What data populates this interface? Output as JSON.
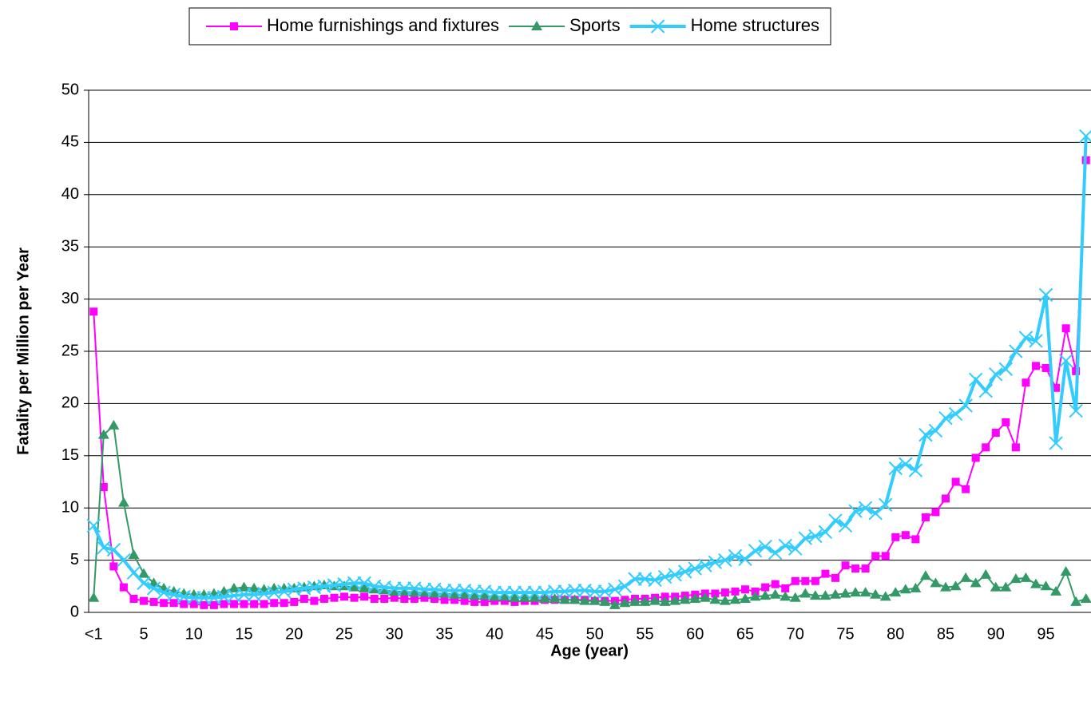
{
  "chart_data": {
    "type": "line",
    "x_label": "Age (year)",
    "y_label": "Fatality per Million per Year",
    "categories": [
      "<1",
      null,
      null,
      null,
      null,
      "5",
      null,
      null,
      null,
      null,
      "10",
      null,
      null,
      null,
      null,
      "15",
      null,
      null,
      null,
      null,
      "20",
      null,
      null,
      null,
      null,
      "25",
      null,
      null,
      null,
      null,
      "30",
      null,
      null,
      null,
      null,
      "35",
      null,
      null,
      null,
      null,
      "40",
      null,
      null,
      null,
      null,
      "45",
      null,
      null,
      null,
      null,
      "50",
      null,
      null,
      null,
      null,
      "55",
      null,
      null,
      null,
      null,
      "60",
      null,
      null,
      null,
      null,
      "65",
      null,
      null,
      null,
      null,
      "70",
      null,
      null,
      null,
      null,
      "75",
      null,
      null,
      null,
      null,
      "80",
      null,
      null,
      null,
      null,
      "85",
      null,
      null,
      null,
      null,
      "90",
      null,
      null,
      null,
      null,
      "95",
      null,
      null,
      null,
      null
    ],
    "series": [
      {
        "name": "Home furnishings and fixtures",
        "color": "#ff00ff",
        "marker": "square",
        "values": [
          28.8,
          12,
          4.4,
          2.4,
          1.3,
          1.1,
          1.0,
          0.9,
          0.9,
          0.8,
          0.8,
          0.7,
          0.7,
          0.8,
          0.8,
          0.8,
          0.8,
          0.8,
          0.9,
          0.9,
          1.0,
          1.3,
          1.1,
          1.3,
          1.4,
          1.5,
          1.4,
          1.5,
          1.3,
          1.3,
          1.4,
          1.3,
          1.3,
          1.4,
          1.3,
          1.2,
          1.2,
          1.1,
          1.0,
          1.0,
          1.1,
          1.1,
          1.0,
          1.1,
          1.1,
          1.2,
          1.2,
          1.2,
          1.2,
          1.2,
          1.1,
          1.1,
          1.1,
          1.2,
          1.3,
          1.3,
          1.4,
          1.5,
          1.5,
          1.6,
          1.7,
          1.8,
          1.8,
          1.9,
          2.0,
          2.2,
          2.0,
          2.4,
          2.7,
          2.3,
          3.0,
          3.0,
          3.0,
          3.7,
          3.3,
          4.5,
          4.2,
          4.2,
          5.4,
          5.4,
          7.2,
          7.4,
          7.0,
          9.1,
          9.6,
          10.9,
          12.5,
          11.8,
          14.8,
          15.8,
          17.2,
          18.2,
          15.8,
          22.0,
          23.6,
          23.4,
          21.5,
          27.2,
          23.1,
          43.3
        ]
      },
      {
        "name": "Sports",
        "color": "#339966",
        "marker": "triangle",
        "values": [
          1.4,
          17.0,
          17.9,
          10.5,
          5.5,
          3.7,
          2.8,
          2.3,
          2.0,
          1.8,
          1.7,
          1.7,
          1.8,
          2.0,
          2.3,
          2.4,
          2.3,
          2.2,
          2.3,
          2.3,
          2.3,
          2.4,
          2.5,
          2.6,
          2.5,
          2.5,
          2.4,
          2.3,
          2.2,
          2.1,
          2.0,
          2.0,
          1.9,
          1.9,
          1.8,
          1.8,
          1.7,
          1.7,
          1.6,
          1.6,
          1.5,
          1.5,
          1.4,
          1.4,
          1.4,
          1.3,
          1.3,
          1.2,
          1.2,
          1.1,
          1.1,
          1.0,
          0.7,
          0.9,
          1.0,
          1.0,
          1.1,
          1.0,
          1.1,
          1.2,
          1.3,
          1.4,
          1.2,
          1.1,
          1.2,
          1.3,
          1.5,
          1.6,
          1.7,
          1.5,
          1.4,
          1.8,
          1.6,
          1.6,
          1.7,
          1.8,
          1.9,
          1.9,
          1.7,
          1.5,
          1.9,
          2.2,
          2.3,
          3.5,
          2.8,
          2.4,
          2.5,
          3.3,
          2.8,
          3.6,
          2.4,
          2.4,
          3.2,
          3.3,
          2.7,
          2.5,
          2.0,
          3.9,
          1.0,
          1.3
        ]
      },
      {
        "name": "Home structures",
        "color": "#33ccff",
        "marker": "x",
        "values": [
          8.3,
          6.2,
          6.0,
          5.0,
          3.8,
          2.8,
          2.3,
          1.9,
          1.7,
          1.5,
          1.4,
          1.4,
          1.4,
          1.5,
          1.6,
          1.7,
          1.7,
          1.8,
          1.9,
          2.0,
          2.2,
          2.3,
          2.4,
          2.5,
          2.6,
          2.7,
          2.8,
          2.8,
          2.5,
          2.4,
          2.3,
          2.3,
          2.3,
          2.2,
          2.2,
          2.1,
          2.1,
          2.1,
          2.0,
          2.0,
          1.9,
          1.9,
          1.9,
          1.9,
          1.9,
          1.9,
          2.0,
          2.0,
          2.1,
          2.1,
          2.0,
          2.0,
          2.2,
          2.5,
          3.2,
          3.2,
          3.1,
          3.4,
          3.6,
          3.9,
          4.2,
          4.5,
          4.8,
          5.0,
          5.4,
          5.1,
          5.9,
          6.3,
          5.7,
          6.4,
          6.1,
          7.1,
          7.3,
          7.7,
          8.8,
          8.3,
          9.7,
          10.0,
          9.5,
          10.3,
          13.8,
          14.2,
          13.6,
          17.0,
          17.4,
          18.6,
          19.0,
          19.8,
          22.3,
          21.2,
          22.8,
          23.3,
          25.0,
          26.3,
          26.0,
          30.4,
          16.2,
          24.1,
          19.3,
          45.6
        ]
      }
    ],
    "ylim": [
      0,
      50
    ],
    "yticks": [
      0,
      5,
      10,
      15,
      20,
      25,
      30,
      35,
      40,
      45,
      50
    ],
    "grid": true,
    "legend": "top"
  }
}
